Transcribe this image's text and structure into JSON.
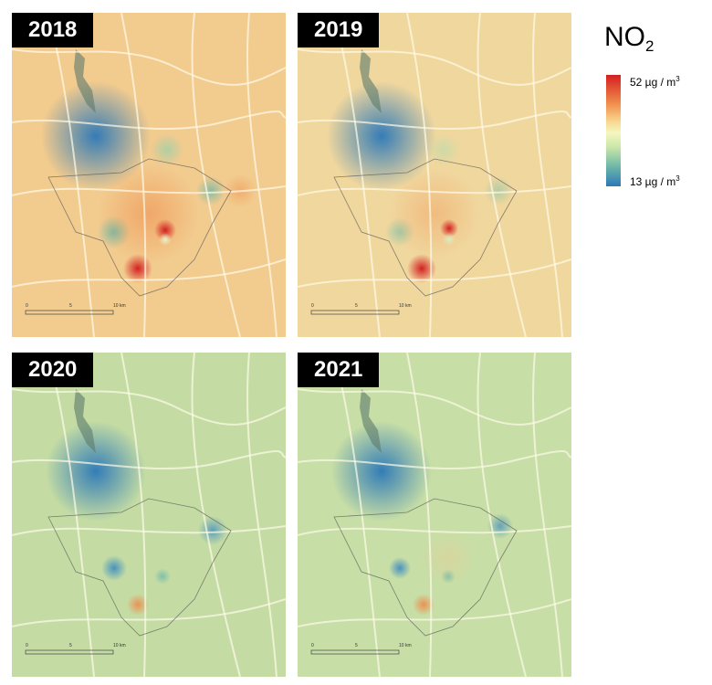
{
  "legend": {
    "pollutant": "NO",
    "pollutant_sub": "2",
    "max_value": "52 µg / m",
    "min_value": "13 µg / m",
    "unit_sup": "3",
    "colors": [
      "#d32020",
      "#f08a4a",
      "#f7d98e",
      "#f5f6c0",
      "#c9e6a8",
      "#6fb8a8",
      "#2b78b8"
    ]
  },
  "panels": [
    {
      "year": "2018",
      "background": "#f2cb8e"
    },
    {
      "year": "2019",
      "background": "#f0d79e"
    },
    {
      "year": "2020",
      "background": "#c4dca4"
    },
    {
      "year": "2021",
      "background": "#c7dea6"
    }
  ],
  "scale_bar": {
    "ticks": [
      "0",
      "5",
      "10 km"
    ]
  }
}
